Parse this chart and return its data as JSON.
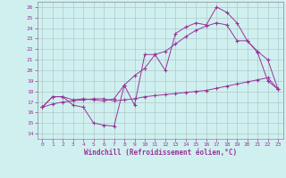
{
  "xlabel": "Windchill (Refroidissement éolien,°C)",
  "background_color": "#d0f0f0",
  "grid_color": "#b0c8c8",
  "line_color": "#993399",
  "xlim": [
    -0.5,
    23.5
  ],
  "ylim": [
    13.5,
    26.5
  ],
  "xticks": [
    0,
    1,
    2,
    3,
    4,
    5,
    6,
    7,
    8,
    9,
    10,
    11,
    12,
    13,
    14,
    15,
    16,
    17,
    18,
    19,
    20,
    21,
    22,
    23
  ],
  "yticks": [
    14,
    15,
    16,
    17,
    18,
    19,
    20,
    21,
    22,
    23,
    24,
    25,
    26
  ],
  "line1_x": [
    0,
    1,
    2,
    3,
    4,
    5,
    6,
    7,
    8,
    9,
    10,
    11,
    12,
    13,
    14,
    15,
    16,
    17,
    18,
    19,
    20,
    21,
    22,
    23
  ],
  "line1_y": [
    16.5,
    17.5,
    17.5,
    16.7,
    16.5,
    15.0,
    14.8,
    14.7,
    18.6,
    16.7,
    21.5,
    21.5,
    20.0,
    23.5,
    24.1,
    24.5,
    24.3,
    26.0,
    25.5,
    24.5,
    22.8,
    21.7,
    19.0,
    18.2
  ],
  "line2_x": [
    0,
    1,
    2,
    3,
    4,
    5,
    6,
    7,
    8,
    9,
    10,
    11,
    12,
    13,
    14,
    15,
    16,
    17,
    18,
    19,
    20,
    21,
    22,
    23
  ],
  "line2_y": [
    16.5,
    16.8,
    17.0,
    17.1,
    17.2,
    17.3,
    17.3,
    17.1,
    17.2,
    17.3,
    17.5,
    17.6,
    17.7,
    17.8,
    17.9,
    18.0,
    18.1,
    18.3,
    18.5,
    18.7,
    18.9,
    19.1,
    19.3,
    18.2
  ],
  "line3_x": [
    0,
    1,
    2,
    3,
    4,
    5,
    6,
    7,
    8,
    9,
    10,
    11,
    12,
    13,
    14,
    15,
    16,
    17,
    18,
    19,
    20,
    21,
    22,
    23
  ],
  "line3_y": [
    16.5,
    17.5,
    17.5,
    17.2,
    17.3,
    17.2,
    17.1,
    17.3,
    18.6,
    19.5,
    20.2,
    21.5,
    21.8,
    22.5,
    23.2,
    23.8,
    24.2,
    24.5,
    24.3,
    22.8,
    22.8,
    21.8,
    21.0,
    18.2
  ]
}
